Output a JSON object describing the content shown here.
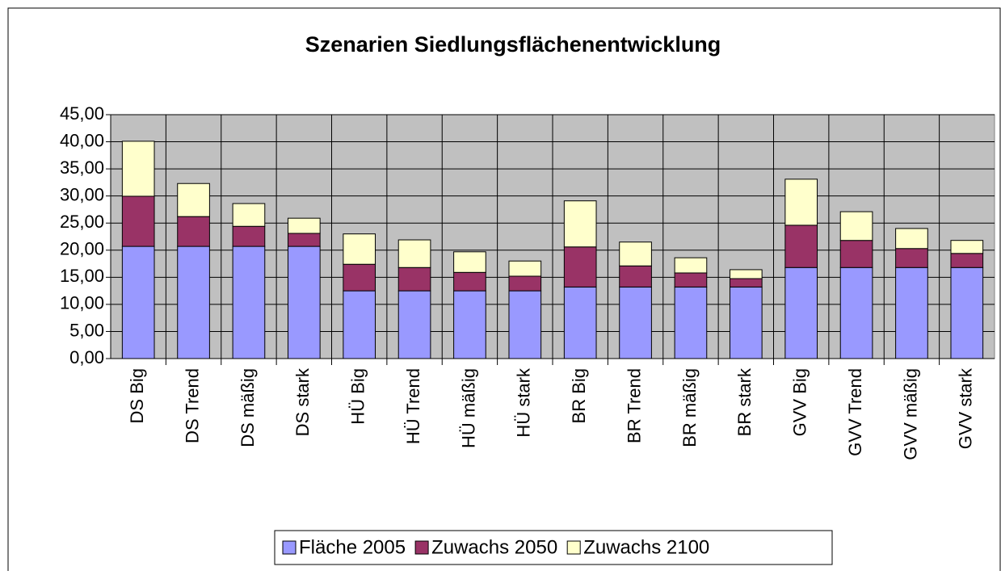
{
  "chart_data": {
    "type": "stacked_bar",
    "title": "Szenarien Siedlungsflächenentwicklung",
    "categories": [
      "DS Big",
      "DS Trend",
      "DS mäßig",
      "DS stark",
      "HÜ Big",
      "HÜ Trend",
      "HÜ mäßig",
      "HÜ stark",
      "BR Big",
      "BR Trend",
      "BR mäßig",
      "BR stark",
      "GVV Big",
      "GVV Trend",
      "GVV mäßig",
      "GVV stark"
    ],
    "series": [
      {
        "name": "Fläche 2005",
        "color": "#9999ff",
        "values": [
          20.7,
          20.7,
          20.7,
          20.7,
          12.5,
          12.5,
          12.5,
          12.5,
          13.2,
          13.2,
          13.2,
          13.2,
          16.8,
          16.8,
          16.8,
          16.8
        ]
      },
      {
        "name": "Zuwachs 2050",
        "color": "#993366",
        "values": [
          9.25,
          5.5,
          3.7,
          2.4,
          4.9,
          4.3,
          3.4,
          2.7,
          7.4,
          3.9,
          2.6,
          1.55,
          7.8,
          5.0,
          3.5,
          2.6
        ]
      },
      {
        "name": "Zuwachs 2100",
        "color": "#ffffcc",
        "values": [
          10.15,
          6.1,
          4.2,
          2.8,
          5.6,
          5.1,
          3.8,
          2.8,
          8.5,
          4.4,
          2.8,
          1.65,
          8.5,
          5.3,
          3.7,
          2.4
        ]
      }
    ],
    "ylim": [
      0,
      45
    ],
    "yticks": [
      {
        "value": 0,
        "label": "0,00"
      },
      {
        "value": 5,
        "label": "5,00"
      },
      {
        "value": 10,
        "label": "10,00"
      },
      {
        "value": 15,
        "label": "15,00"
      },
      {
        "value": 20,
        "label": "20,00"
      },
      {
        "value": 25,
        "label": "25,00"
      },
      {
        "value": 30,
        "label": "30,00"
      },
      {
        "value": 35,
        "label": "35,00"
      },
      {
        "value": 40,
        "label": "40,00"
      },
      {
        "value": 45,
        "label": "45,00"
      }
    ],
    "grid": true,
    "legend": "bottom"
  }
}
